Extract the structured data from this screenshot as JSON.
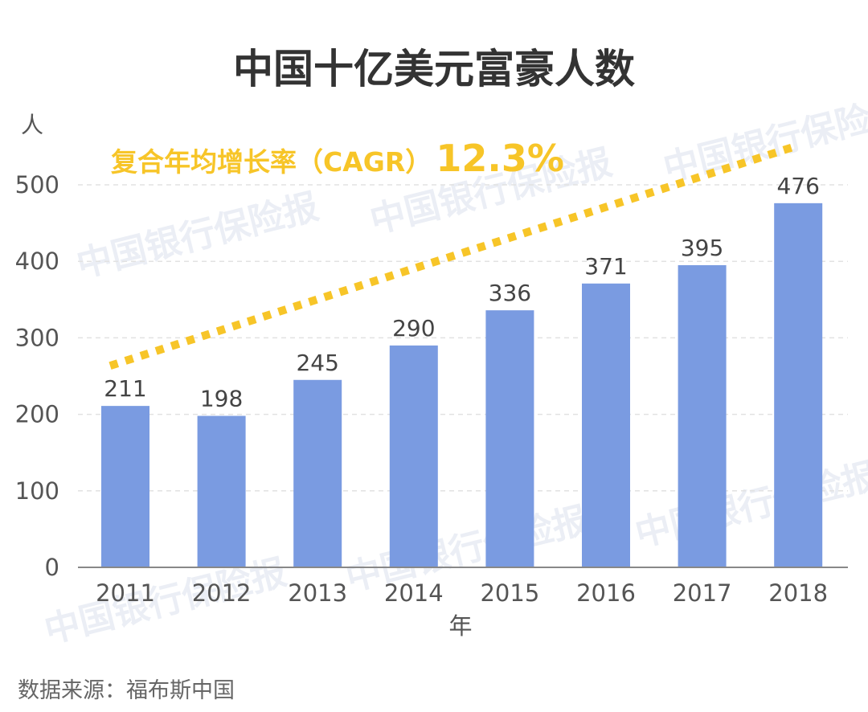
{
  "title": "中国十亿美元富豪人数",
  "source": "数据来源：福布斯中国",
  "watermark": "中国银行保险报",
  "cagr": {
    "label": "复合年均增长率（CAGR）",
    "value": "12.3%"
  },
  "colors": {
    "bar": "#7a9be1",
    "trend": "#f7c528",
    "grid": "#e2e2e2",
    "axis": "#888888"
  },
  "chart_data": {
    "type": "bar",
    "title": "中国十亿美元富豪人数",
    "xlabel": "年",
    "ylabel": "人",
    "categories": [
      "2011",
      "2012",
      "2013",
      "2014",
      "2015",
      "2016",
      "2017",
      "2018"
    ],
    "values": [
      211,
      198,
      245,
      290,
      336,
      371,
      395,
      476
    ],
    "ylim": [
      0,
      500
    ],
    "yticks": [
      0,
      100,
      200,
      300,
      400,
      500
    ],
    "grid": true,
    "annotation": "复合年均增长率（CAGR）12.3%"
  }
}
